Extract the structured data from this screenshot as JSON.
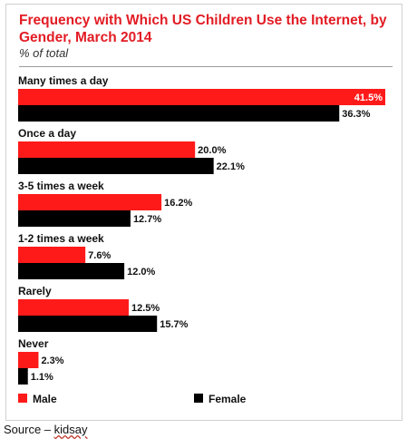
{
  "chart_data": {
    "type": "bar",
    "orientation": "horizontal",
    "title": "Frequency with Which US Children Use the Internet, by Gender, March 2014",
    "subtitle": "% of total",
    "categories": [
      "Many times a day",
      "Once a day",
      "3-5 times a week",
      "1-2 times a week",
      "Rarely",
      "Never"
    ],
    "series": [
      {
        "name": "Male",
        "color": "#ff1a1a",
        "values": [
          41.5,
          20.0,
          16.2,
          7.6,
          12.5,
          2.3
        ],
        "labels": [
          "41.5%",
          "20.0%",
          "16.2%",
          "7.6%",
          "12.5%",
          "2.3%"
        ]
      },
      {
        "name": "Female",
        "color": "#000000",
        "values": [
          36.3,
          22.1,
          12.7,
          12.0,
          15.7,
          1.1
        ],
        "labels": [
          "36.3%",
          "22.1%",
          "12.7%",
          "12.0%",
          "15.7%",
          "1.1%"
        ]
      }
    ],
    "xlim": [
      0,
      41.5
    ],
    "legend": "bottom",
    "grid": false
  },
  "source": {
    "prefix": "Source – ",
    "name": "kidsay"
  }
}
